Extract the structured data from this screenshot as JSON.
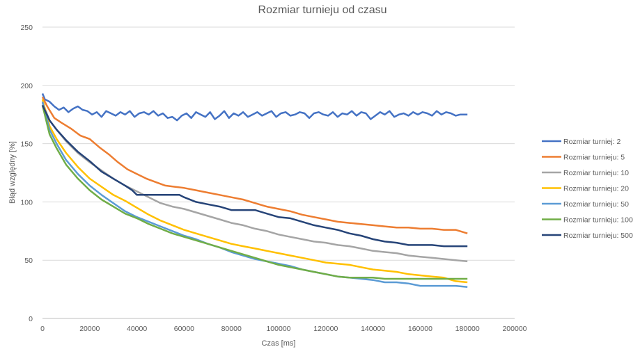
{
  "chart_data": {
    "type": "line",
    "title": "Rozmiar turnieju od czasu",
    "xlabel": "Czas [ms]",
    "ylabel": "Błąd względny [%]",
    "xlim": [
      0,
      200000
    ],
    "ylim": [
      0,
      250
    ],
    "x_ticks": [
      0,
      20000,
      40000,
      60000,
      80000,
      100000,
      120000,
      140000,
      160000,
      180000,
      200000
    ],
    "y_ticks": [
      0,
      50,
      100,
      150,
      200,
      250
    ],
    "x_tick_labels": [
      "0",
      "20000",
      "40000",
      "60000",
      "80000",
      "100000",
      "120000",
      "140000",
      "160000",
      "180000",
      "200000"
    ],
    "y_tick_labels": [
      "0",
      "50",
      "100",
      "150",
      "200",
      "250"
    ],
    "grid": true,
    "legend_position": "right",
    "series": [
      {
        "name": "Rozmiar turniej: 2",
        "color": "#4472C4",
        "x": [
          0,
          1000,
          3000,
          5000,
          7000,
          9000,
          11000,
          13000,
          15000,
          17000,
          19000,
          21000,
          23000,
          25000,
          27000,
          29000,
          31000,
          33000,
          35000,
          37000,
          39000,
          41000,
          43000,
          45000,
          47000,
          49000,
          51000,
          53000,
          55000,
          57000,
          59000,
          61000,
          63000,
          65000,
          67000,
          69000,
          71000,
          73000,
          75000,
          77000,
          79000,
          81000,
          83000,
          85000,
          87000,
          89000,
          91000,
          93000,
          95000,
          97000,
          99000,
          101000,
          103000,
          105000,
          107000,
          109000,
          111000,
          113000,
          115000,
          117000,
          119000,
          121000,
          123000,
          125000,
          127000,
          129000,
          131000,
          133000,
          135000,
          137000,
          139000,
          141000,
          143000,
          145000,
          147000,
          149000,
          151000,
          153000,
          155000,
          157000,
          159000,
          161000,
          163000,
          165000,
          167000,
          169000,
          171000,
          173000,
          175000,
          177000,
          179000,
          180000
        ],
        "y": [
          193,
          188,
          186,
          182,
          179,
          181,
          177,
          180,
          182,
          179,
          178,
          175,
          177,
          173,
          178,
          176,
          174,
          177,
          175,
          178,
          173,
          176,
          177,
          175,
          178,
          174,
          176,
          172,
          173,
          170,
          174,
          176,
          172,
          177,
          175,
          173,
          177,
          171,
          174,
          178,
          172,
          176,
          174,
          177,
          173,
          175,
          177,
          174,
          176,
          178,
          173,
          176,
          177,
          174,
          175,
          177,
          176,
          172,
          176,
          177,
          175,
          174,
          177,
          173,
          176,
          175,
          178,
          174,
          177,
          176,
          171,
          174,
          177,
          175,
          178,
          173,
          175,
          176,
          174,
          177,
          175,
          177,
          176,
          174,
          178,
          175,
          177,
          176,
          174,
          175,
          175,
          175
        ]
      },
      {
        "name": "Rozmiar turnieju: 5",
        "color": "#ED7D31",
        "x": [
          0,
          2000,
          5000,
          8000,
          12000,
          16000,
          20000,
          24000,
          28000,
          32000,
          36000,
          40000,
          44000,
          48000,
          52000,
          56000,
          60000,
          65000,
          70000,
          75000,
          80000,
          85000,
          90000,
          95000,
          100000,
          105000,
          110000,
          115000,
          120000,
          125000,
          130000,
          135000,
          140000,
          145000,
          150000,
          155000,
          160000,
          165000,
          170000,
          175000,
          180000
        ],
        "y": [
          190,
          182,
          172,
          168,
          163,
          157,
          154,
          147,
          141,
          134,
          128,
          124,
          120,
          117,
          114,
          113,
          112,
          110,
          108,
          106,
          104,
          102,
          99,
          96,
          94,
          92,
          89,
          87,
          85,
          83,
          82,
          81,
          80,
          79,
          78,
          78,
          77,
          77,
          76,
          76,
          73
        ]
      },
      {
        "name": "Rozmiar turnieju: 10",
        "color": "#A5A5A5",
        "x": [
          0,
          3000,
          6000,
          10000,
          15000,
          20000,
          25000,
          30000,
          35000,
          40000,
          45000,
          50000,
          55000,
          60000,
          65000,
          70000,
          75000,
          80000,
          85000,
          90000,
          95000,
          100000,
          105000,
          110000,
          115000,
          120000,
          125000,
          130000,
          135000,
          140000,
          145000,
          150000,
          155000,
          160000,
          165000,
          170000,
          175000,
          180000
        ],
        "y": [
          185,
          170,
          162,
          152,
          142,
          134,
          127,
          120,
          114,
          109,
          104,
          99,
          96,
          94,
          91,
          88,
          85,
          82,
          80,
          77,
          75,
          72,
          70,
          68,
          66,
          65,
          63,
          62,
          60,
          58,
          57,
          56,
          54,
          53,
          52,
          51,
          50,
          49
        ]
      },
      {
        "name": "Rozmiar turnieju: 20",
        "color": "#FFC000",
        "x": [
          0,
          3000,
          6000,
          10000,
          15000,
          20000,
          25000,
          30000,
          35000,
          40000,
          45000,
          50000,
          55000,
          60000,
          65000,
          70000,
          75000,
          80000,
          85000,
          90000,
          95000,
          100000,
          105000,
          110000,
          115000,
          120000,
          125000,
          130000,
          135000,
          140000,
          145000,
          150000,
          155000,
          160000,
          165000,
          170000,
          175000,
          180000
        ],
        "y": [
          188,
          165,
          154,
          142,
          130,
          120,
          113,
          106,
          101,
          95,
          89,
          84,
          80,
          76,
          73,
          70,
          67,
          64,
          62,
          60,
          58,
          56,
          54,
          52,
          50,
          48,
          47,
          46,
          44,
          42,
          41,
          40,
          38,
          37,
          36,
          35,
          32,
          31
        ]
      },
      {
        "name": "Rozmiar turnieju: 50",
        "color": "#5B9BD5",
        "x": [
          0,
          3000,
          6000,
          10000,
          15000,
          20000,
          25000,
          30000,
          35000,
          40000,
          45000,
          50000,
          55000,
          60000,
          65000,
          70000,
          75000,
          80000,
          85000,
          90000,
          95000,
          100000,
          105000,
          110000,
          115000,
          120000,
          125000,
          130000,
          135000,
          140000,
          145000,
          150000,
          155000,
          160000,
          165000,
          170000,
          175000,
          180000
        ],
        "y": [
          186,
          162,
          150,
          136,
          124,
          114,
          106,
          99,
          92,
          87,
          83,
          79,
          75,
          71,
          68,
          64,
          61,
          57,
          54,
          51,
          49,
          47,
          45,
          42,
          40,
          38,
          36,
          35,
          34,
          33,
          31,
          31,
          30,
          28,
          28,
          28,
          28,
          27
        ]
      },
      {
        "name": "Rozmiar turnieju: 100",
        "color": "#70AD47",
        "x": [
          0,
          3000,
          6000,
          10000,
          15000,
          20000,
          25000,
          30000,
          35000,
          40000,
          45000,
          50000,
          55000,
          60000,
          65000,
          70000,
          75000,
          80000,
          85000,
          90000,
          95000,
          100000,
          105000,
          110000,
          115000,
          120000,
          125000,
          130000,
          135000,
          140000,
          145000,
          150000,
          155000,
          160000,
          165000,
          170000,
          175000,
          180000
        ],
        "y": [
          183,
          158,
          146,
          132,
          120,
          110,
          102,
          96,
          90,
          86,
          81,
          77,
          73,
          70,
          67,
          64,
          61,
          58,
          55,
          52,
          49,
          46,
          44,
          42,
          40,
          38,
          36,
          35,
          35,
          35,
          34,
          34,
          34,
          34,
          34,
          34,
          34,
          34
        ]
      },
      {
        "name": "Rozmiar turnieju: 500",
        "color": "#264478",
        "x": [
          0,
          3000,
          6000,
          10000,
          15000,
          20000,
          25000,
          30000,
          35000,
          38000,
          40000,
          45000,
          50000,
          55000,
          58000,
          60000,
          65000,
          70000,
          75000,
          80000,
          85000,
          90000,
          95000,
          100000,
          105000,
          110000,
          115000,
          120000,
          125000,
          130000,
          135000,
          140000,
          145000,
          150000,
          155000,
          160000,
          165000,
          170000,
          175000,
          180000
        ],
        "y": [
          183,
          170,
          162,
          153,
          143,
          135,
          126,
          120,
          114,
          110,
          106,
          106,
          106,
          106,
          106,
          104,
          100,
          98,
          96,
          93,
          93,
          93,
          90,
          87,
          86,
          83,
          80,
          78,
          76,
          73,
          71,
          68,
          66,
          65,
          63,
          63,
          63,
          62,
          62,
          62
        ]
      }
    ]
  }
}
